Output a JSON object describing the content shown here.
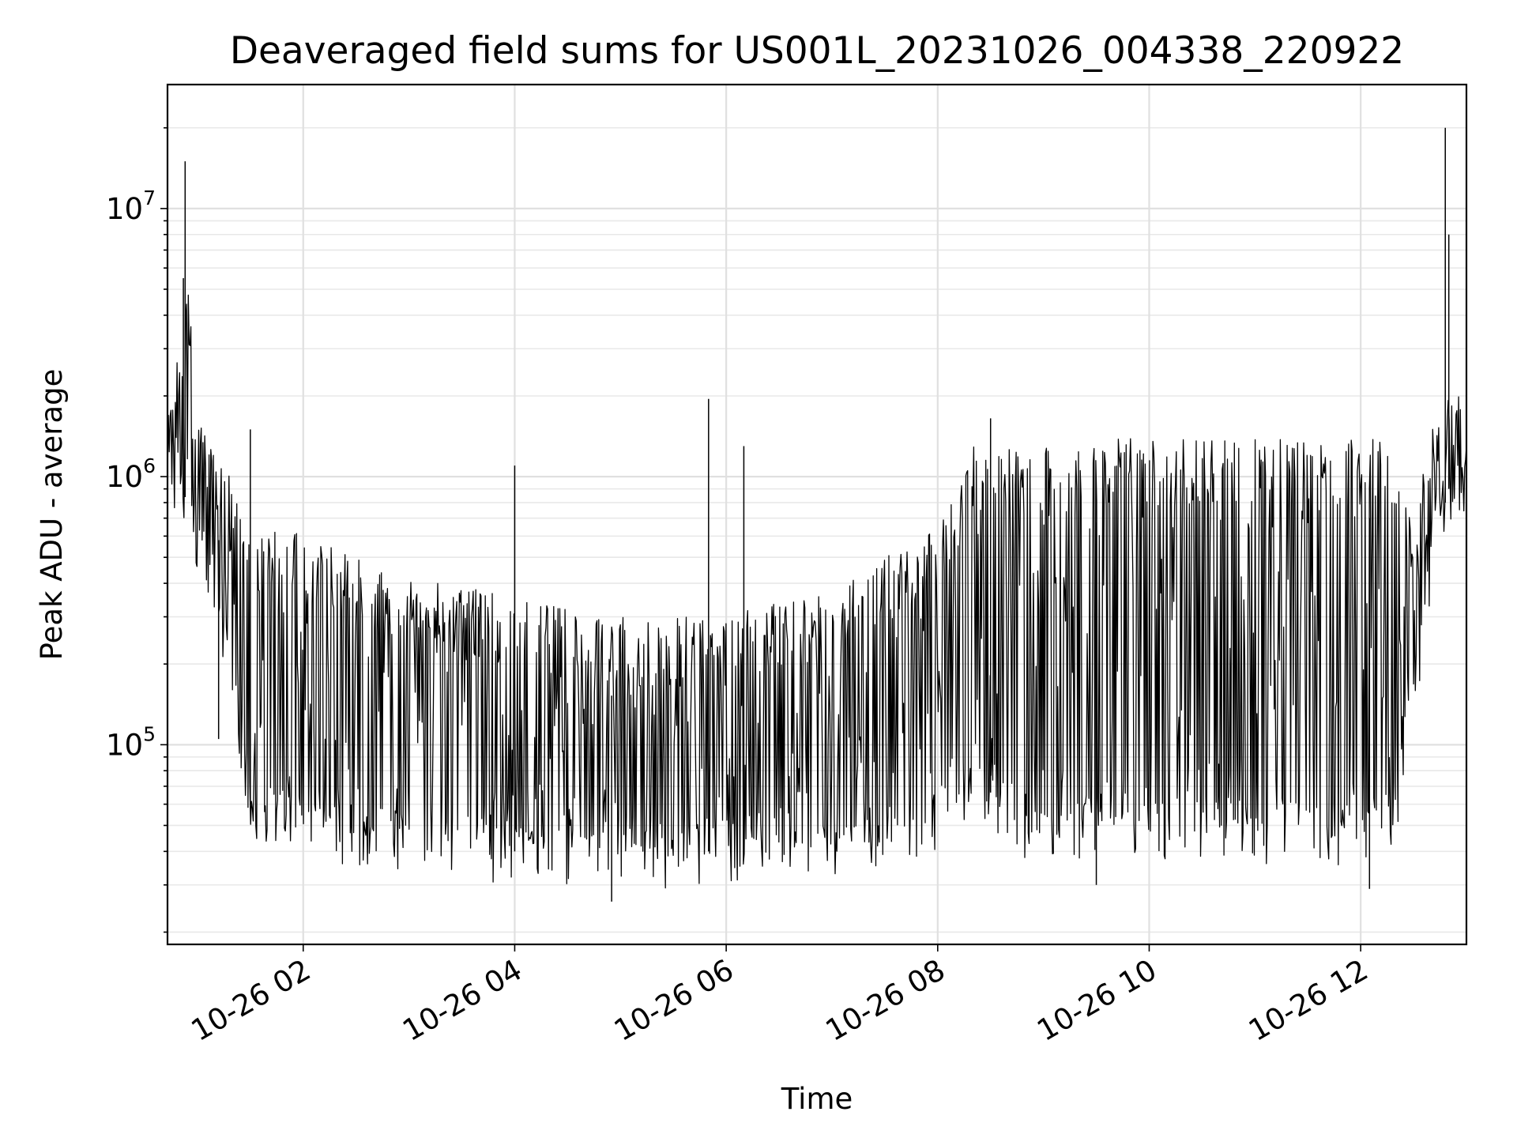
{
  "chart_data": {
    "type": "line",
    "title": "Deaveraged field sums for US001L_20231026_004338_220922",
    "xlabel": "Time",
    "ylabel": "Peak ADU - average",
    "yscale": "log",
    "ylim": [
      18000,
      29000000
    ],
    "xlim": [
      "2023-10-26 00:43",
      "2023-10-26 13:00"
    ],
    "grid": true,
    "x_ticks": [
      {
        "value": "2023-10-26 02:00",
        "label": "10-26 02"
      },
      {
        "value": "2023-10-26 04:00",
        "label": "10-26 04"
      },
      {
        "value": "2023-10-26 06:00",
        "label": "10-26 06"
      },
      {
        "value": "2023-10-26 08:00",
        "label": "10-26 08"
      },
      {
        "value": "2023-10-26 10:00",
        "label": "10-26 10"
      },
      {
        "value": "2023-10-26 12:00",
        "label": "10-26 12"
      }
    ],
    "y_ticks": [
      {
        "value": 100000,
        "base": "10",
        "exp": "5"
      },
      {
        "value": 1000000,
        "base": "10",
        "exp": "6"
      },
      {
        "value": 10000000,
        "base": "10",
        "exp": "7"
      }
    ],
    "series": [
      {
        "color": "#000000",
        "x": [
          "2023-10-26 00:43",
          "2023-10-26 00:50",
          "2023-10-26 00:55",
          "2023-10-26 01:00",
          "2023-10-26 01:05",
          "2023-10-26 01:10",
          "2023-10-26 01:15",
          "2023-10-26 01:20",
          "2023-10-26 01:25",
          "2023-10-26 01:30",
          "2023-10-26 01:40",
          "2023-10-26 01:50",
          "2023-10-26 02:00",
          "2023-10-26 02:15",
          "2023-10-26 02:30",
          "2023-10-26 02:45",
          "2023-10-26 03:00",
          "2023-10-26 03:20",
          "2023-10-26 03:40",
          "2023-10-26 04:00",
          "2023-10-26 04:20",
          "2023-10-26 04:40",
          "2023-10-26 05:00",
          "2023-10-26 05:20",
          "2023-10-26 05:40",
          "2023-10-26 06:00",
          "2023-10-26 06:20",
          "2023-10-26 06:40",
          "2023-10-26 07:00",
          "2023-10-26 07:20",
          "2023-10-26 07:40",
          "2023-10-26 08:00",
          "2023-10-26 08:15",
          "2023-10-26 08:20",
          "2023-10-26 08:40",
          "2023-10-26 09:00",
          "2023-10-26 09:20",
          "2023-10-26 09:40",
          "2023-10-26 10:00",
          "2023-10-26 10:20",
          "2023-10-26 10:40",
          "2023-10-26 11:00",
          "2023-10-26 11:20",
          "2023-10-26 11:40",
          "2023-10-26 12:00",
          "2023-10-26 12:15",
          "2023-10-26 12:20",
          "2023-10-26 12:30",
          "2023-10-26 12:40",
          "2023-10-26 12:50",
          "2023-10-26 13:00"
        ],
        "low": [
          1000000,
          900000,
          800000,
          600000,
          500000,
          350000,
          250000,
          150000,
          90000,
          60000,
          55000,
          55000,
          55000,
          50000,
          45000,
          45000,
          45000,
          42000,
          40000,
          40000,
          40000,
          38000,
          38000,
          38000,
          40000,
          40000,
          42000,
          42000,
          42000,
          45000,
          48000,
          50000,
          70000,
          80000,
          55000,
          45000,
          50000,
          50000,
          50000,
          50000,
          48000,
          48000,
          47000,
          45000,
          45000,
          50000,
          60000,
          150000,
          500000,
          900000,
          1000000
        ],
        "high": [
          1800000,
          3000000,
          5000000,
          1800000,
          1500000,
          1200000,
          1100000,
          1000000,
          800000,
          700000,
          650000,
          650000,
          600000,
          550000,
          500000,
          450000,
          420000,
          400000,
          380000,
          350000,
          330000,
          320000,
          300000,
          300000,
          300000,
          300000,
          330000,
          350000,
          380000,
          450000,
          550000,
          700000,
          1000000,
          1300000,
          1300000,
          1300000,
          1300000,
          1400000,
          1400000,
          1400000,
          1400000,
          1400000,
          1400000,
          1400000,
          1400000,
          1400000,
          1000000,
          700000,
          1500000,
          2000000,
          2000000
        ],
        "spikes": [
          {
            "x": "2023-10-26 00:53",
            "y": 15000000
          },
          {
            "x": "2023-10-26 00:52",
            "y": 5500000
          },
          {
            "x": "2023-10-26 01:30",
            "y": 1500000
          },
          {
            "x": "2023-10-26 04:00",
            "y": 1100000
          },
          {
            "x": "2023-10-26 05:50",
            "y": 1950000
          },
          {
            "x": "2023-10-26 06:10",
            "y": 1300000
          },
          {
            "x": "2023-10-26 08:30",
            "y": 1650000
          },
          {
            "x": "2023-10-26 12:48",
            "y": 20000000
          },
          {
            "x": "2023-10-26 12:50",
            "y": 8000000
          }
        ],
        "dips": [
          {
            "x": "2023-10-26 01:12",
            "y": 105000
          },
          {
            "x": "2023-10-26 04:55",
            "y": 26000
          },
          {
            "x": "2023-10-26 09:30",
            "y": 30000
          },
          {
            "x": "2023-10-26 12:05",
            "y": 29000
          }
        ]
      }
    ]
  }
}
